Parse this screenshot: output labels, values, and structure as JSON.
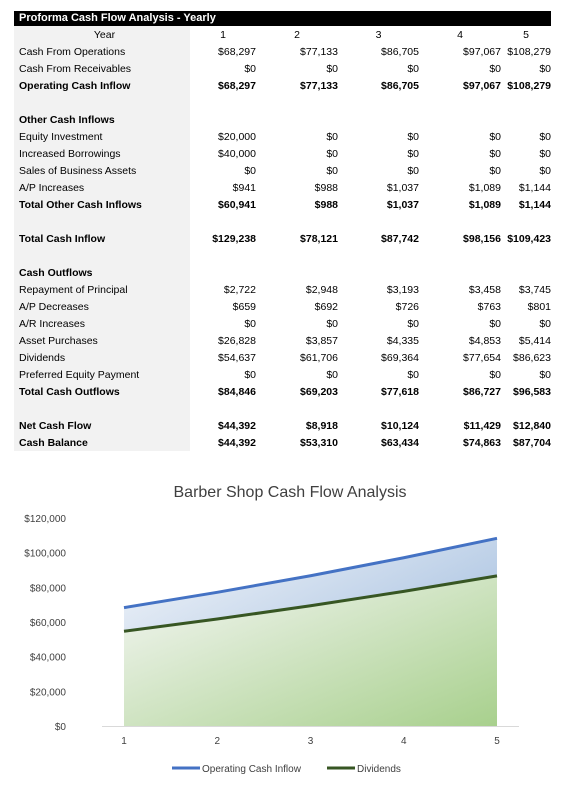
{
  "table": {
    "title": "Proforma Cash Flow Analysis - Yearly",
    "header": [
      "Year",
      "1",
      "2",
      "3",
      "4",
      "5"
    ],
    "rows": [
      {
        "label": "Cash From Operations",
        "values": [
          "$68,297",
          "$77,133",
          "$86,705",
          "$97,067",
          "$108,279"
        ],
        "bold": false
      },
      {
        "label": "Cash From Receivables",
        "values": [
          "$0",
          "$0",
          "$0",
          "$0",
          "$0"
        ],
        "bold": false
      },
      {
        "label": "Operating Cash Inflow",
        "values": [
          "$68,297",
          "$77,133",
          "$86,705",
          "$97,067",
          "$108,279"
        ],
        "bold": true
      },
      {
        "label": "",
        "values": [
          "",
          "",
          "",
          "",
          ""
        ],
        "bold": false
      },
      {
        "label": "Other Cash Inflows",
        "values": [
          "",
          "",
          "",
          "",
          ""
        ],
        "bold": true
      },
      {
        "label": "Equity Investment",
        "values": [
          "$20,000",
          "$0",
          "$0",
          "$0",
          "$0"
        ],
        "bold": false
      },
      {
        "label": "Increased Borrowings",
        "values": [
          "$40,000",
          "$0",
          "$0",
          "$0",
          "$0"
        ],
        "bold": false
      },
      {
        "label": "Sales of Business Assets",
        "values": [
          "$0",
          "$0",
          "$0",
          "$0",
          "$0"
        ],
        "bold": false
      },
      {
        "label": "A/P Increases",
        "values": [
          "$941",
          "$988",
          "$1,037",
          "$1,089",
          "$1,144"
        ],
        "bold": false
      },
      {
        "label": "Total Other Cash Inflows",
        "values": [
          "$60,941",
          "$988",
          "$1,037",
          "$1,089",
          "$1,144"
        ],
        "bold": true
      },
      {
        "label": "",
        "values": [
          "",
          "",
          "",
          "",
          ""
        ],
        "bold": false
      },
      {
        "label": "Total Cash Inflow",
        "values": [
          "$129,238",
          "$78,121",
          "$87,742",
          "$98,156",
          "$109,423"
        ],
        "bold": true
      },
      {
        "label": "",
        "values": [
          "",
          "",
          "",
          "",
          ""
        ],
        "bold": false
      },
      {
        "label": "Cash Outflows",
        "values": [
          "",
          "",
          "",
          "",
          ""
        ],
        "bold": true
      },
      {
        "label": "Repayment of Principal",
        "values": [
          "$2,722",
          "$2,948",
          "$3,193",
          "$3,458",
          "$3,745"
        ],
        "bold": false
      },
      {
        "label": "A/P Decreases",
        "values": [
          "$659",
          "$692",
          "$726",
          "$763",
          "$801"
        ],
        "bold": false
      },
      {
        "label": "A/R Increases",
        "values": [
          "$0",
          "$0",
          "$0",
          "$0",
          "$0"
        ],
        "bold": false
      },
      {
        "label": "Asset Purchases",
        "values": [
          "$26,828",
          "$3,857",
          "$4,335",
          "$4,853",
          "$5,414"
        ],
        "bold": false
      },
      {
        "label": "Dividends",
        "values": [
          "$54,637",
          "$61,706",
          "$69,364",
          "$77,654",
          "$86,623"
        ],
        "bold": false
      },
      {
        "label": "Preferred Equity Payment",
        "values": [
          "$0",
          "$0",
          "$0",
          "$0",
          "$0"
        ],
        "bold": false
      },
      {
        "label": "Total Cash Outflows",
        "values": [
          "$84,846",
          "$69,203",
          "$77,618",
          "$86,727",
          "$96,583"
        ],
        "bold": true
      },
      {
        "label": "",
        "values": [
          "",
          "",
          "",
          "",
          ""
        ],
        "bold": false
      },
      {
        "label": "Net Cash Flow",
        "values": [
          "$44,392",
          "$8,918",
          "$10,124",
          "$11,429",
          "$12,840"
        ],
        "bold": true
      },
      {
        "label": "Cash Balance",
        "values": [
          "$44,392",
          "$53,310",
          "$63,434",
          "$74,863",
          "$87,704"
        ],
        "bold": true
      }
    ]
  },
  "chart_data": {
    "type": "area",
    "title": "Barber Shop Cash Flow Analysis",
    "x": [
      1,
      2,
      3,
      4,
      5
    ],
    "xlabel": "",
    "ylabel": "",
    "ylim": [
      0,
      120000
    ],
    "yticks": [
      "$0",
      "$20,000",
      "$40,000",
      "$60,000",
      "$80,000",
      "$100,000",
      "$120,000"
    ],
    "xticks": [
      "1",
      "2",
      "3",
      "4",
      "5"
    ],
    "series": [
      {
        "name": "Operating Cash Inflow",
        "values": [
          68297,
          77133,
          86705,
          97067,
          108279
        ],
        "color": "#4472c4"
      },
      {
        "name": "Dividends",
        "values": [
          54637,
          61706,
          69364,
          77654,
          86623
        ],
        "color": "#375623"
      }
    ],
    "grid": false,
    "legend": "bottom"
  }
}
